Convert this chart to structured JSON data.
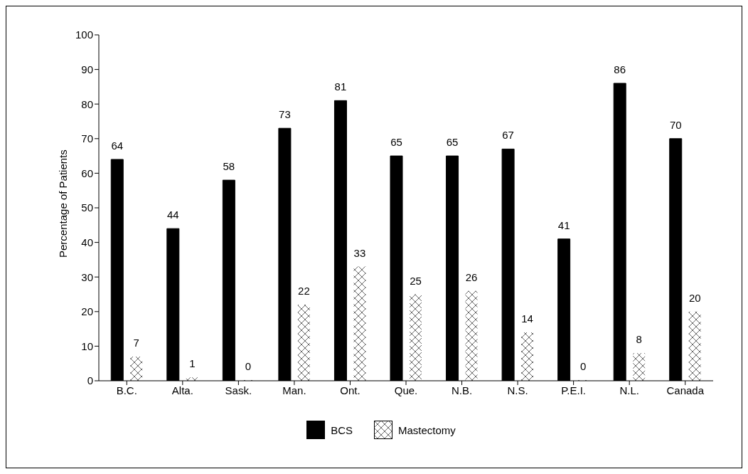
{
  "chart_data": {
    "type": "bar",
    "ylabel": "Percentage of Patients",
    "categories": [
      "B.C.",
      "Alta.",
      "Sask.",
      "Man.",
      "Ont.",
      "Que.",
      "N.B.",
      "N.S.",
      "P.E.I.",
      "N.L.",
      "Canada"
    ],
    "series": [
      {
        "name": "BCS",
        "color": "#000000",
        "values": [
          64,
          44,
          58,
          73,
          81,
          65,
          65,
          67,
          41,
          86,
          70
        ]
      },
      {
        "name": "Mastectomy",
        "color": "#ffffff",
        "values": [
          7,
          1,
          0,
          22,
          33,
          25,
          26,
          14,
          0,
          8,
          20
        ]
      }
    ],
    "ylim": [
      0,
      100
    ],
    "yticks": [
      0,
      10,
      20,
      30,
      40,
      50,
      60,
      70,
      80,
      90,
      100
    ],
    "data_labels": true,
    "legend": "bottom",
    "grid": false
  }
}
